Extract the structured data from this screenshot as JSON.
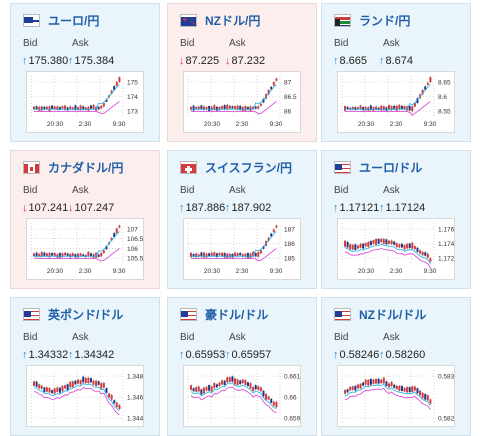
{
  "labels": {
    "bid": "Bid",
    "ask": "Ask"
  },
  "cards": [
    {
      "name": "ユーロ/円",
      "dir": "up",
      "bid": "175.380",
      "ask": "175.384",
      "flag": "eu-flag-icon",
      "ticks_y": [
        "175",
        "174",
        "173"
      ],
      "ticks_x": [
        "20:30",
        "2:30",
        "9:30"
      ]
    },
    {
      "name": "NZドル/円",
      "dir": "down",
      "bid": "87.225",
      "ask": "87.232",
      "flag": "nz-flag-icon",
      "ticks_y": [
        "87",
        "86.5",
        "86"
      ],
      "ticks_x": [
        "20:30",
        "2:30",
        "9:30"
      ]
    },
    {
      "name": "ランド/円",
      "dir": "up",
      "bid": "8.665",
      "ask": "8.674",
      "flag": "za-flag-icon",
      "ticks_y": [
        "8.65",
        "8.6",
        "8.55"
      ],
      "ticks_x": [
        "20:30",
        "2:30",
        "9:30"
      ]
    },
    {
      "name": "カナダドル/円",
      "dir": "down",
      "bid": "107.241",
      "ask": "107.247",
      "flag": "ca-flag-icon",
      "ticks_y": [
        "107",
        "106.5",
        "106",
        "105.5"
      ],
      "ticks_x": [
        "20:30",
        "2:30",
        "9:30"
      ]
    },
    {
      "name": "スイスフラン/円",
      "dir": "up",
      "bid": "187.886",
      "ask": "187.902",
      "flag": "ch-flag-icon",
      "ticks_y": [
        "187",
        "186",
        "185"
      ],
      "ticks_x": [
        "20:30",
        "2:30",
        "9:30"
      ]
    },
    {
      "name": "ユーロ/ドル",
      "dir": "up",
      "bid": "1.17121",
      "ask": "1.17124",
      "flag": "us-flag-icon",
      "ticks_y": [
        "1.176",
        "1.174",
        "1.172"
      ],
      "ticks_x": [
        "20:30",
        "2:30",
        "9:30"
      ]
    },
    {
      "name": "英ポンド/ドル",
      "dir": "up",
      "bid": "1.34332",
      "ask": "1.34342",
      "flag": "us-flag-icon",
      "ticks_y": [
        "1.348",
        "1.346",
        "1.344"
      ],
      "ticks_x": []
    },
    {
      "name": "豪ドル/ドル",
      "dir": "up",
      "bid": "0.65953",
      "ask": "0.65957",
      "flag": "us-flag-icon",
      "ticks_y": [
        "0.661",
        "0.66",
        "0.659"
      ],
      "ticks_x": []
    },
    {
      "name": "NZドル/ドル",
      "dir": "up",
      "bid": "0.58246",
      "ask": "0.58260",
      "flag": "us-flag-icon",
      "ticks_y": [
        "0.583",
        "0.582"
      ],
      "ticks_x": []
    }
  ],
  "colors": {
    "up": "#2a8fd8",
    "down": "#d23c3c",
    "title": "#1f5fa8",
    "ma_cyan": "#22b5e8",
    "ma_magenta": "#d63bd3"
  }
}
